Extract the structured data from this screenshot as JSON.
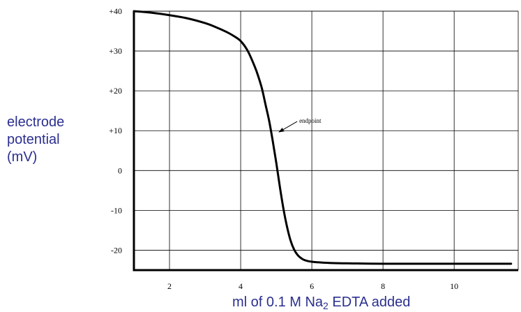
{
  "chart_data": {
    "type": "line",
    "xlabel": "ml of 0.1 M Na",
    "xlabel_subscript": "2",
    "xlabel_suffix": " EDTA added",
    "ylabel": [
      "electrode",
      "potential",
      "(mV)"
    ],
    "xlim": [
      1,
      11.8
    ],
    "ylim": [
      -25,
      40
    ],
    "x_ticks": [
      2,
      4,
      6,
      8,
      10
    ],
    "y_ticks": [
      {
        "value": 40,
        "label": "+40"
      },
      {
        "value": 30,
        "label": "+30"
      },
      {
        "value": 20,
        "label": "+20"
      },
      {
        "value": 10,
        "label": "+10"
      },
      {
        "value": 0,
        "label": "0"
      },
      {
        "value": -10,
        "label": "-10"
      },
      {
        "value": -20,
        "label": "-20"
      }
    ],
    "grid": true,
    "series": [
      {
        "color": "#000000",
        "x": [
          1.0,
          1.5,
          2.0,
          2.5,
          3.0,
          3.3,
          3.6,
          3.8,
          4.0,
          4.2,
          4.4,
          4.5,
          4.6,
          4.7,
          4.8,
          4.9,
          5.0,
          5.1,
          5.2,
          5.3,
          5.4,
          5.5,
          5.6,
          5.7,
          5.8,
          6.0,
          6.5,
          7.0,
          8.0,
          9.0,
          10.0,
          11.0,
          11.6
        ],
        "y": [
          40.0,
          39.6,
          39.0,
          38.2,
          37.0,
          36.0,
          34.8,
          33.8,
          32.5,
          30.0,
          26.0,
          23.5,
          20.5,
          16.5,
          12.5,
          7.5,
          2.0,
          -4.0,
          -9.5,
          -14.0,
          -17.5,
          -19.8,
          -21.2,
          -22.0,
          -22.5,
          -22.9,
          -23.2,
          -23.3,
          -23.4,
          -23.4,
          -23.4,
          -23.4,
          -23.4
        ]
      }
    ],
    "annotations": [
      {
        "text": "endpoint",
        "x": 5.0,
        "y": 9.5
      }
    ]
  }
}
